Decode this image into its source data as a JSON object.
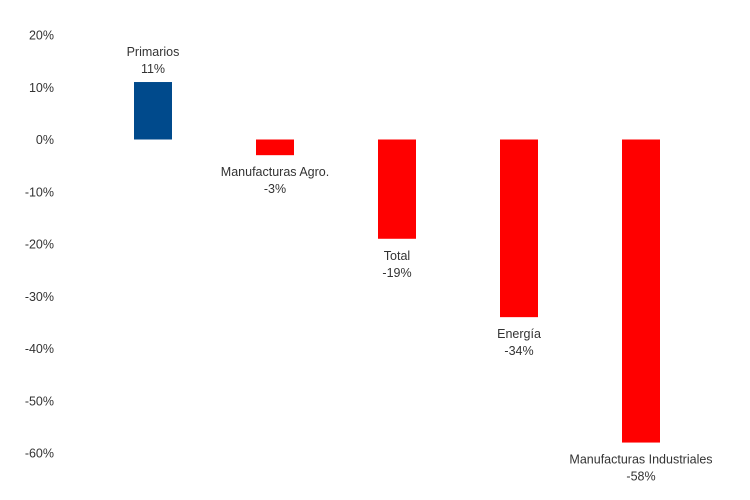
{
  "chart_data": {
    "type": "bar",
    "title": "",
    "xlabel": "",
    "ylabel": "",
    "categories": [
      "Primarios",
      "Manufacturas Agro.",
      "Total",
      "Energía",
      "Manufacturas Industriales"
    ],
    "values": [
      11,
      -3,
      -19,
      -34,
      -58
    ],
    "value_labels": [
      "11%",
      "-3%",
      "-19%",
      "-34%",
      "-58%"
    ],
    "colors": [
      "#004a8c",
      "#ff0000",
      "#ff0000",
      "#ff0000",
      "#ff0000"
    ],
    "ylim": [
      -60,
      20
    ],
    "yticks": [
      20,
      10,
      0,
      -10,
      -20,
      -30,
      -40,
      -50,
      -60
    ],
    "ytick_labels": [
      "20%",
      "10%",
      "0%",
      "-10%",
      "-20%",
      "-30%",
      "-40%",
      "-50%",
      "-60%"
    ],
    "grid": false,
    "legend": false
  }
}
